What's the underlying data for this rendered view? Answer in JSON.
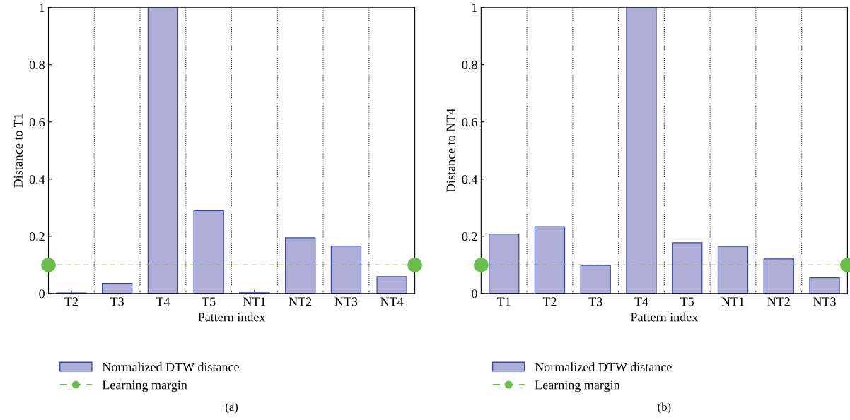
{
  "chart_data": [
    {
      "type": "bar",
      "xlabel": "Pattern index",
      "ylabel": "Distance to T1",
      "categories": [
        "T2",
        "T3",
        "T4",
        "T5",
        "NT1",
        "NT2",
        "NT3",
        "NT4"
      ],
      "series": [
        {
          "name": "Normalized DTW distance",
          "color": "#aeaed8",
          "values": [
            0.002,
            0.035,
            1,
            0.29,
            0.005,
            0.195,
            0.166,
            0.059
          ]
        }
      ],
      "ylim": [
        0,
        1
      ],
      "yticks": [
        0,
        0.2,
        0.4,
        0.6,
        0.8,
        1
      ],
      "grid": "x",
      "legend": "bottom",
      "marker": "circle",
      "ref_lines": [
        {
          "axis": "y",
          "value": 0.1,
          "label": "Learning margin",
          "color": "#6abf4b",
          "line_style": "dashed"
        }
      ],
      "annotations": [
        "(a)"
      ]
    },
    {
      "type": "bar",
      "xlabel": "Pattern index",
      "ylabel": "Distance to NT4",
      "categories": [
        "T1",
        "T2",
        "T3",
        "T4",
        "T5",
        "NT1",
        "NT2",
        "NT3"
      ],
      "series": [
        {
          "name": "Normalized DTW distance",
          "color": "#aeaed8",
          "values": [
            0.208,
            0.234,
            0.098,
            1,
            0.178,
            0.165,
            0.121,
            0.055
          ]
        }
      ],
      "ylim": [
        0,
        1
      ],
      "yticks": [
        0,
        0.2,
        0.4,
        0.6,
        0.8,
        1
      ],
      "grid": "x",
      "legend": "bottom",
      "marker": "circle",
      "ref_lines": [
        {
          "axis": "y",
          "value": 0.1,
          "label": "Learning margin",
          "color": "#6abf4b",
          "line_style": "dashed"
        }
      ],
      "annotations": [
        "(b)"
      ]
    }
  ]
}
